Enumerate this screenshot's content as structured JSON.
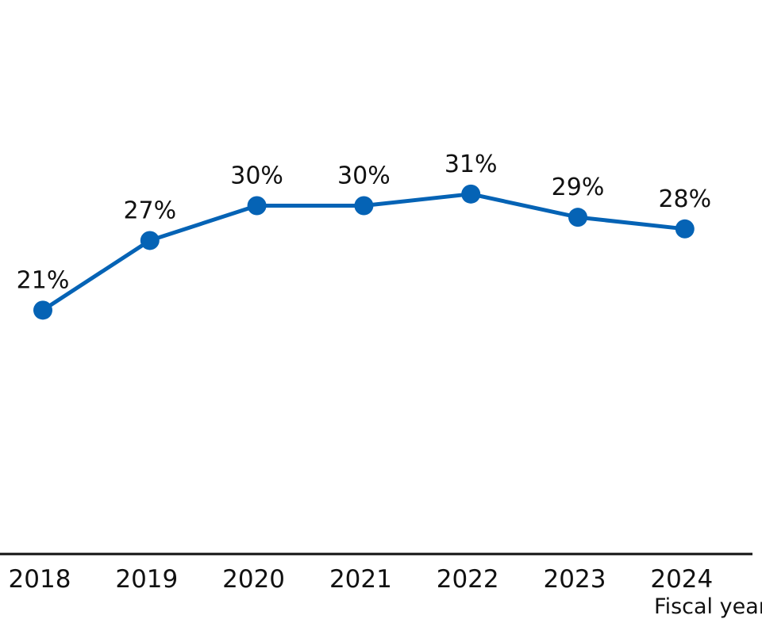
{
  "chart_data": {
    "type": "line",
    "title": "",
    "xlabel": "Fiscal year",
    "ylabel": "",
    "categories": [
      "2018",
      "2019",
      "2020",
      "2021",
      "2022",
      "2023",
      "2024"
    ],
    "series": [
      {
        "values": [
          21,
          27,
          30,
          30,
          31,
          29,
          28
        ],
        "data_labels": [
          "21%",
          "27%",
          "30%",
          "30%",
          "31%",
          "29%",
          "28%"
        ],
        "color": "#0563b5"
      }
    ],
    "ylim": [
      0,
      42
    ],
    "grid": false,
    "legend": "none",
    "axis_color": "#111111"
  }
}
